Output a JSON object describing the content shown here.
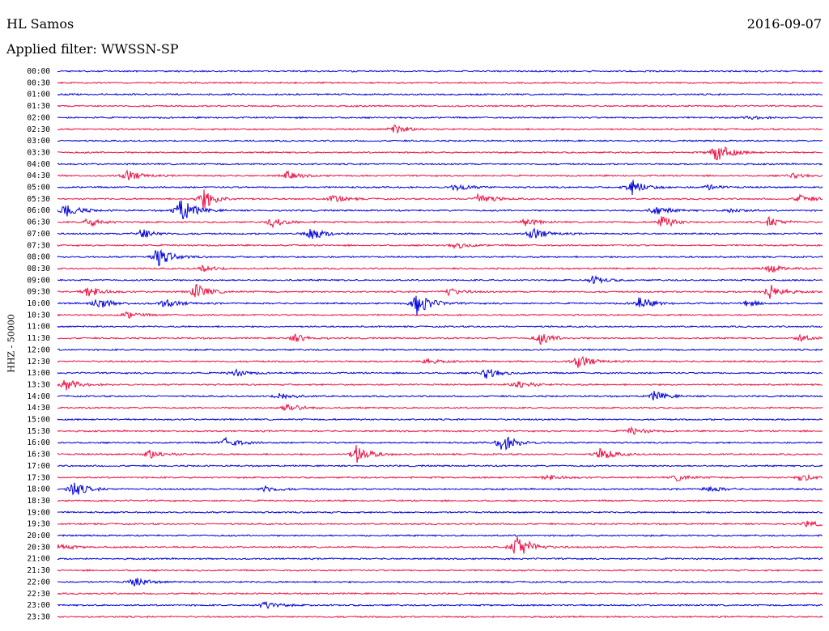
{
  "header": {
    "station": "HL Samos",
    "date": "2016-09-07",
    "filter": "Applied filter: WWSSN-SP"
  },
  "chart_data": {
    "type": "line",
    "title": "HL Samos",
    "ylabel": "HHZ - 50000",
    "trace_colors": [
      "#0000dd",
      "#ee1144"
    ],
    "rows": [
      {
        "label": "00:00",
        "events": []
      },
      {
        "label": "00:30",
        "events": []
      },
      {
        "label": "01:00",
        "events": []
      },
      {
        "label": "01:30",
        "events": []
      },
      {
        "label": "02:00",
        "events": [
          {
            "x": 0.905,
            "a": 2
          }
        ]
      },
      {
        "label": "02:30",
        "events": [
          {
            "x": 0.44,
            "a": 6
          }
        ]
      },
      {
        "label": "03:00",
        "events": []
      },
      {
        "label": "03:30",
        "events": [
          {
            "x": 0.86,
            "a": 14
          }
        ]
      },
      {
        "label": "04:00",
        "events": []
      },
      {
        "label": "04:30",
        "events": [
          {
            "x": 0.09,
            "a": 7
          },
          {
            "x": 0.3,
            "a": 5
          },
          {
            "x": 0.96,
            "a": 3
          }
        ]
      },
      {
        "label": "05:00",
        "events": [
          {
            "x": 0.52,
            "a": 5
          },
          {
            "x": 0.75,
            "a": 10
          },
          {
            "x": 0.85,
            "a": 3
          }
        ]
      },
      {
        "label": "05:30",
        "events": [
          {
            "x": 0.19,
            "a": 13
          },
          {
            "x": 0.36,
            "a": 5
          },
          {
            "x": 0.55,
            "a": 8
          },
          {
            "x": 0.97,
            "a": 5
          }
        ]
      },
      {
        "label": "06:00",
        "events": [
          {
            "x": 0.01,
            "a": 9
          },
          {
            "x": 0.16,
            "a": 17
          },
          {
            "x": 0.78,
            "a": 6
          },
          {
            "x": 0.88,
            "a": 3
          }
        ]
      },
      {
        "label": "06:30",
        "events": [
          {
            "x": 0.04,
            "a": 6
          },
          {
            "x": 0.28,
            "a": 6
          },
          {
            "x": 0.61,
            "a": 5
          },
          {
            "x": 0.79,
            "a": 8
          },
          {
            "x": 0.93,
            "a": 6
          }
        ]
      },
      {
        "label": "07:00",
        "events": [
          {
            "x": 0.11,
            "a": 6
          },
          {
            "x": 0.33,
            "a": 9
          },
          {
            "x": 0.62,
            "a": 8
          }
        ]
      },
      {
        "label": "07:30",
        "events": [
          {
            "x": 0.52,
            "a": 4
          }
        ]
      },
      {
        "label": "08:00",
        "events": [
          {
            "x": 0.13,
            "a": 13
          }
        ]
      },
      {
        "label": "08:30",
        "events": [
          {
            "x": 0.19,
            "a": 4
          },
          {
            "x": 0.93,
            "a": 5
          }
        ]
      },
      {
        "label": "09:00",
        "events": [
          {
            "x": 0.7,
            "a": 5
          }
        ]
      },
      {
        "label": "09:30",
        "events": [
          {
            "x": 0.04,
            "a": 8
          },
          {
            "x": 0.18,
            "a": 10
          },
          {
            "x": 0.51,
            "a": 5
          },
          {
            "x": 0.93,
            "a": 10
          }
        ]
      },
      {
        "label": "10:00",
        "events": [
          {
            "x": 0.05,
            "a": 8
          },
          {
            "x": 0.14,
            "a": 6
          },
          {
            "x": 0.47,
            "a": 15
          },
          {
            "x": 0.76,
            "a": 8
          },
          {
            "x": 0.9,
            "a": 4
          }
        ]
      },
      {
        "label": "10:30",
        "events": [
          {
            "x": 0.09,
            "a": 4
          }
        ]
      },
      {
        "label": "11:00",
        "events": []
      },
      {
        "label": "11:30",
        "events": [
          {
            "x": 0.31,
            "a": 5
          },
          {
            "x": 0.63,
            "a": 8
          },
          {
            "x": 0.97,
            "a": 4
          }
        ]
      },
      {
        "label": "12:00",
        "events": []
      },
      {
        "label": "12:30",
        "events": [
          {
            "x": 0.48,
            "a": 4
          },
          {
            "x": 0.68,
            "a": 9
          }
        ]
      },
      {
        "label": "13:00",
        "events": [
          {
            "x": 0.23,
            "a": 5
          },
          {
            "x": 0.56,
            "a": 7
          }
        ]
      },
      {
        "label": "13:30",
        "events": [
          {
            "x": 0.01,
            "a": 7
          },
          {
            "x": 0.6,
            "a": 6
          }
        ]
      },
      {
        "label": "14:00",
        "events": [
          {
            "x": 0.29,
            "a": 5
          },
          {
            "x": 0.78,
            "a": 6
          }
        ]
      },
      {
        "label": "14:30",
        "events": [
          {
            "x": 0.3,
            "a": 6
          }
        ]
      },
      {
        "label": "15:00",
        "events": []
      },
      {
        "label": "15:30",
        "events": [
          {
            "x": 0.75,
            "a": 5
          }
        ]
      },
      {
        "label": "16:00",
        "events": [
          {
            "x": 0.22,
            "a": 7
          },
          {
            "x": 0.58,
            "a": 12
          }
        ]
      },
      {
        "label": "16:30",
        "events": [
          {
            "x": 0.12,
            "a": 6
          },
          {
            "x": 0.39,
            "a": 12
          },
          {
            "x": 0.71,
            "a": 8
          }
        ]
      },
      {
        "label": "17:00",
        "events": []
      },
      {
        "label": "17:30",
        "events": [
          {
            "x": 0.64,
            "a": 4
          },
          {
            "x": 0.81,
            "a": 4
          },
          {
            "x": 0.97,
            "a": 5
          }
        ]
      },
      {
        "label": "18:00",
        "events": [
          {
            "x": 0.02,
            "a": 10
          },
          {
            "x": 0.27,
            "a": 4
          },
          {
            "x": 0.85,
            "a": 4
          }
        ]
      },
      {
        "label": "18:30",
        "events": []
      },
      {
        "label": "19:00",
        "events": []
      },
      {
        "label": "19:30",
        "events": [
          {
            "x": 0.98,
            "a": 4
          }
        ]
      },
      {
        "label": "20:00",
        "events": []
      },
      {
        "label": "20:30",
        "events": [
          {
            "x": 0.0,
            "a": 4
          },
          {
            "x": 0.6,
            "a": 18
          }
        ]
      },
      {
        "label": "21:00",
        "events": []
      },
      {
        "label": "21:30",
        "events": []
      },
      {
        "label": "22:00",
        "events": [
          {
            "x": 0.1,
            "a": 6
          }
        ]
      },
      {
        "label": "22:30",
        "events": []
      },
      {
        "label": "23:00",
        "events": [
          {
            "x": 0.27,
            "a": 5
          }
        ]
      },
      {
        "label": "23:30",
        "events": []
      }
    ]
  }
}
